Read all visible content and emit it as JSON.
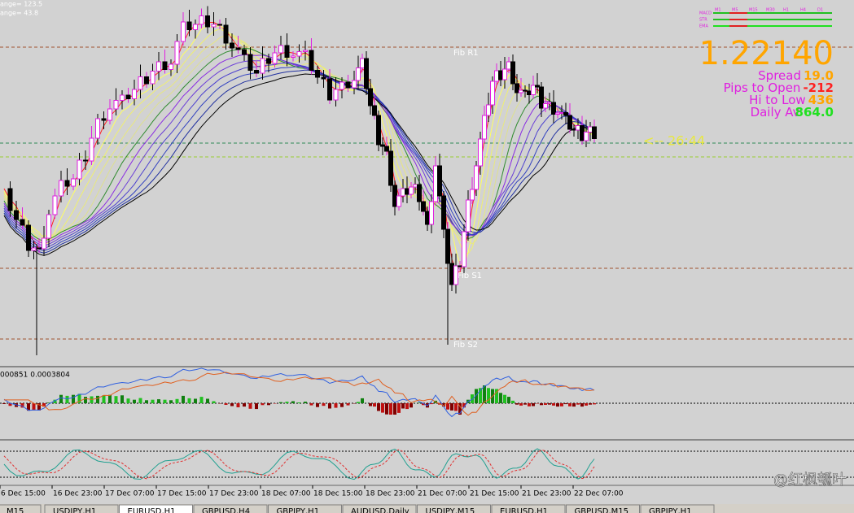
{
  "indicator_info": [
    "ange= 123.5",
    "ange= 43.8"
  ],
  "fib_labels": [
    "Fib R1",
    "Fib S1",
    "Fib S2"
  ],
  "price": "1.22140",
  "stats": [
    {
      "label": "Spread",
      "value": "19.0"
    },
    {
      "label": "Pips to Open",
      "value": "-212"
    },
    {
      "label": "Hi to Low",
      "value": "436"
    },
    {
      "label": "Daily Av",
      "value": "864.0"
    }
  ],
  "timer": "<-- 26:44",
  "signal_panel": {
    "rows": [
      "MACD",
      "STR",
      "EMA"
    ],
    "timeframes": [
      "M1",
      "M5",
      "M15",
      "M30",
      "H1",
      "H4",
      "D1"
    ]
  },
  "macd_label": "000851 0.0003804",
  "time_axis": [
    "6 Dec 15:00",
    "16 Dec 23:00",
    "17 Dec 07:00",
    "17 Dec 15:00",
    "17 Dec 23:00",
    "18 Dec 07:00",
    "18 Dec 15:00",
    "18 Dec 23:00",
    "21 Dec 07:00",
    "21 Dec 15:00",
    "21 Dec 23:00",
    "22 Dec 07:00"
  ],
  "tabs": [
    "M15",
    "USDJPY,H1",
    "EURUSD,H1",
    "GBPUSD,H4",
    "GBPJPY,H1",
    "AUDUSD,Daily",
    "USDJPY,M15",
    "EURUSD,H1",
    "GBPUSD,M15",
    "GBPJPY,H1"
  ],
  "active_tab": 2,
  "watermark": "@红枫瓠叶"
}
